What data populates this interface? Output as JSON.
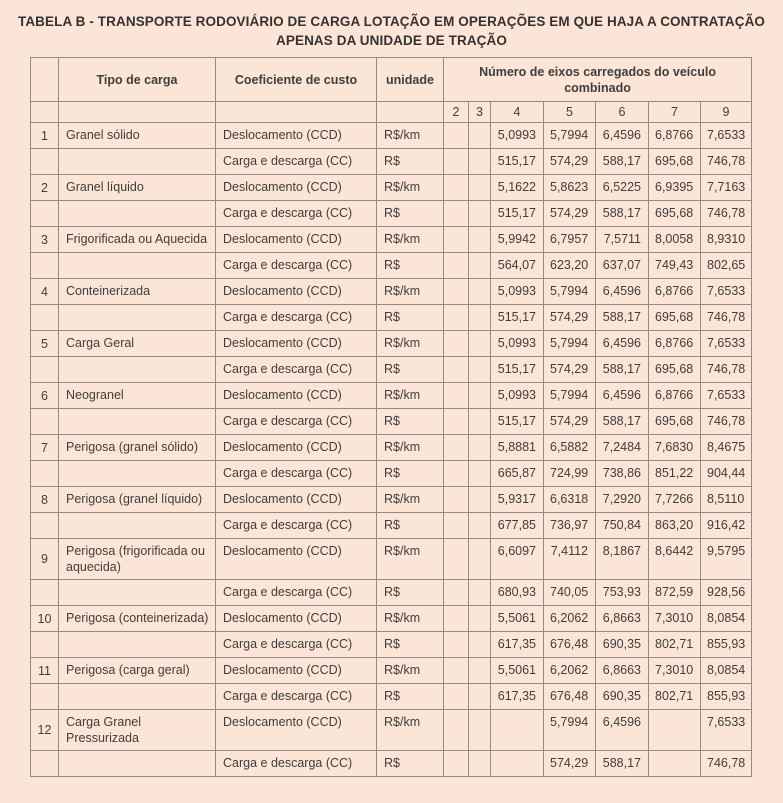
{
  "page": {
    "background_color": "#fae5d7",
    "grid_border_color": "#8e8b89",
    "text_color": "#403e3c",
    "title_color": "#363230"
  },
  "title": {
    "line1": "TABELA B - TRANSPORTE RODOVIÁRIO DE CARGA LOTAÇÃO EM OPERAÇÕES EM QUE HAJA A CONTRATAÇÃO",
    "line2": "APENAS DA UNIDADE DE TRAÇÃO"
  },
  "table": {
    "headers": {
      "row_number": "",
      "tipo": "Tipo de carga",
      "coeficiente": "Coeficiente de custo",
      "unidade": "unidade",
      "eixos": "Número de eixos carregados do veículo combinado"
    },
    "axle_columns": [
      "2",
      "3",
      "4",
      "5",
      "6",
      "7",
      "9"
    ],
    "rows": [
      {
        "num": "1",
        "tipo": "Granel sólido",
        "sub": [
          {
            "coef": "Deslocamento (CCD)",
            "unit": "R$/km",
            "values": [
              "",
              "",
              "5,0993",
              "5,7994",
              "6,4596",
              "6,8766",
              "7,6533"
            ]
          },
          {
            "coef": "Carga e descarga (CC)",
            "unit": "R$",
            "values": [
              "",
              "",
              "515,17",
              "574,29",
              "588,17",
              "695,68",
              "746,78"
            ]
          }
        ]
      },
      {
        "num": "2",
        "tipo": "Granel líquido",
        "sub": [
          {
            "coef": "Deslocamento (CCD)",
            "unit": "R$/km",
            "values": [
              "",
              "",
              "5,1622",
              "5,8623",
              "6,5225",
              "6,9395",
              "7,7163"
            ]
          },
          {
            "coef": "Carga e descarga (CC)",
            "unit": "R$",
            "values": [
              "",
              "",
              "515,17",
              "574,29",
              "588,17",
              "695,68",
              "746,78"
            ]
          }
        ]
      },
      {
        "num": "3",
        "tipo": "Frigorificada ou Aquecida",
        "sub": [
          {
            "coef": "Deslocamento (CCD)",
            "unit": "R$/km",
            "values": [
              "",
              "",
              "5,9942",
              "6,7957",
              "7,5711",
              "8,0058",
              "8,9310"
            ]
          },
          {
            "coef": "Carga e descarga (CC)",
            "unit": "R$",
            "values": [
              "",
              "",
              "564,07",
              "623,20",
              "637,07",
              "749,43",
              "802,65"
            ]
          }
        ]
      },
      {
        "num": "4",
        "tipo": "Conteinerizada",
        "sub": [
          {
            "coef": "Deslocamento (CCD)",
            "unit": "R$/km",
            "values": [
              "",
              "",
              "5,0993",
              "5,7994",
              "6,4596",
              "6,8766",
              "7,6533"
            ]
          },
          {
            "coef": "Carga e descarga (CC)",
            "unit": "R$",
            "values": [
              "",
              "",
              "515,17",
              "574,29",
              "588,17",
              "695,68",
              "746,78"
            ]
          }
        ]
      },
      {
        "num": "5",
        "tipo": "Carga Geral",
        "sub": [
          {
            "coef": "Deslocamento (CCD)",
            "unit": "R$/km",
            "values": [
              "",
              "",
              "5,0993",
              "5,7994",
              "6,4596",
              "6,8766",
              "7,6533"
            ]
          },
          {
            "coef": "Carga e descarga (CC)",
            "unit": "R$",
            "values": [
              "",
              "",
              "515,17",
              "574,29",
              "588,17",
              "695,68",
              "746,78"
            ]
          }
        ]
      },
      {
        "num": "6",
        "tipo": "Neogranel",
        "sub": [
          {
            "coef": "Deslocamento (CCD)",
            "unit": "R$/km",
            "values": [
              "",
              "",
              "5,0993",
              "5,7994",
              "6,4596",
              "6,8766",
              "7,6533"
            ]
          },
          {
            "coef": "Carga e descarga (CC)",
            "unit": "R$",
            "values": [
              "",
              "",
              "515,17",
              "574,29",
              "588,17",
              "695,68",
              "746,78"
            ]
          }
        ]
      },
      {
        "num": "7",
        "tipo": "Perigosa (granel sólido)",
        "sub": [
          {
            "coef": "Deslocamento (CCD)",
            "unit": "R$/km",
            "values": [
              "",
              "",
              "5,8881",
              "6,5882",
              "7,2484",
              "7,6830",
              "8,4675"
            ]
          },
          {
            "coef": "Carga e descarga (CC)",
            "unit": "R$",
            "values": [
              "",
              "",
              "665,87",
              "724,99",
              "738,86",
              "851,22",
              "904,44"
            ]
          }
        ]
      },
      {
        "num": "8",
        "tipo": "Perigosa (granel líquido)",
        "sub": [
          {
            "coef": "Deslocamento (CCD)",
            "unit": "R$/km",
            "values": [
              "",
              "",
              "5,9317",
              "6,6318",
              "7,2920",
              "7,7266",
              "8,5110"
            ]
          },
          {
            "coef": "Carga e descarga (CC)",
            "unit": "R$",
            "values": [
              "",
              "",
              "677,85",
              "736,97",
              "750,84",
              "863,20",
              "916,42"
            ]
          }
        ]
      },
      {
        "num": "9",
        "tipo": "Perigosa (frigorificada ou aquecida)",
        "sub": [
          {
            "coef": "Deslocamento (CCD)",
            "unit": "R$/km",
            "values": [
              "",
              "",
              "6,6097",
              "7,4112",
              "8,1867",
              "8,6442",
              "9,5795"
            ]
          },
          {
            "coef": "Carga e descarga (CC)",
            "unit": "R$",
            "values": [
              "",
              "",
              "680,93",
              "740,05",
              "753,93",
              "872,59",
              "928,56"
            ]
          }
        ]
      },
      {
        "num": "10",
        "tipo": "Perigosa (conteinerizada)",
        "sub": [
          {
            "coef": "Deslocamento (CCD)",
            "unit": "R$/km",
            "values": [
              "",
              "",
              "5,5061",
              "6,2062",
              "6,8663",
              "7,3010",
              "8,0854"
            ]
          },
          {
            "coef": "Carga e descarga (CC)",
            "unit": "R$",
            "values": [
              "",
              "",
              "617,35",
              "676,48",
              "690,35",
              "802,71",
              "855,93"
            ]
          }
        ]
      },
      {
        "num": "11",
        "tipo": "Perigosa (carga geral)",
        "sub": [
          {
            "coef": "Deslocamento (CCD)",
            "unit": "R$/km",
            "values": [
              "",
              "",
              "5,5061",
              "6,2062",
              "6,8663",
              "7,3010",
              "8,0854"
            ]
          },
          {
            "coef": "Carga e descarga (CC)",
            "unit": "R$",
            "values": [
              "",
              "",
              "617,35",
              "676,48",
              "690,35",
              "802,71",
              "855,93"
            ]
          }
        ]
      },
      {
        "num": "12",
        "tipo": "Carga Granel Pressurizada",
        "sub": [
          {
            "coef": "Deslocamento (CCD)",
            "unit": "R$/km",
            "values": [
              "",
              "",
              "",
              "5,7994",
              "6,4596",
              "",
              "7,6533"
            ]
          },
          {
            "coef": "Carga e descarga (CC)",
            "unit": "R$",
            "values": [
              "",
              "",
              "",
              "574,29",
              "588,17",
              "",
              "746,78"
            ]
          }
        ]
      }
    ]
  }
}
